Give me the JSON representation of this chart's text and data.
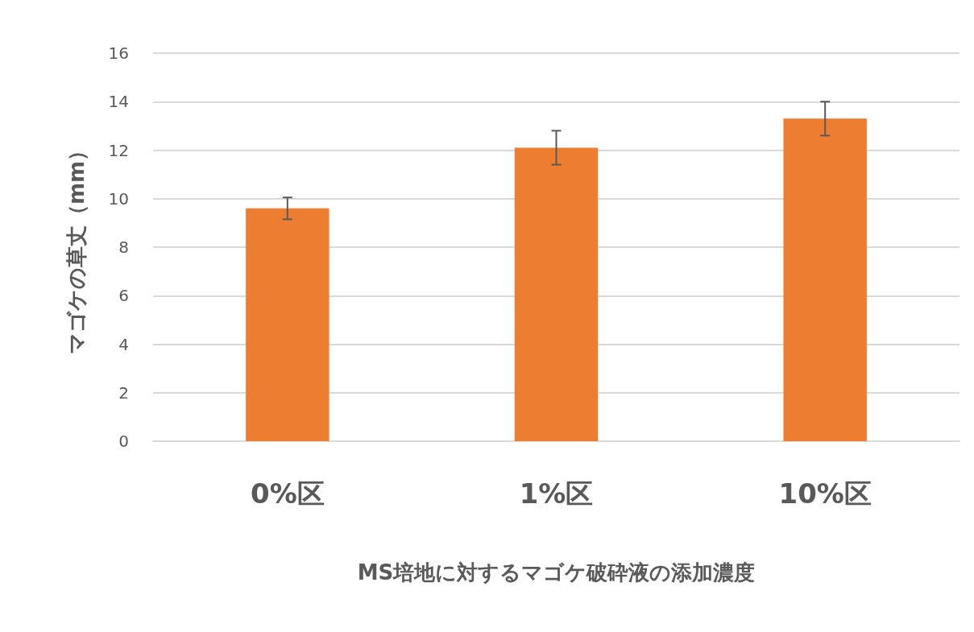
{
  "chart_data": {
    "type": "bar",
    "xlabel": "MS培地に対するマゴケ破砕液の添加濃度",
    "ylabel": "マゴケの草丈（mm）",
    "categories": [
      "0%区",
      "1%区",
      "10%区"
    ],
    "values": [
      9.6,
      12.1,
      13.3
    ],
    "errors": [
      0.45,
      0.7,
      0.7
    ],
    "color": "#ed7d31",
    "ylim": [
      0,
      16
    ],
    "yticks": [
      0,
      2,
      4,
      6,
      8,
      10,
      12,
      14,
      16
    ],
    "grid": "y"
  }
}
